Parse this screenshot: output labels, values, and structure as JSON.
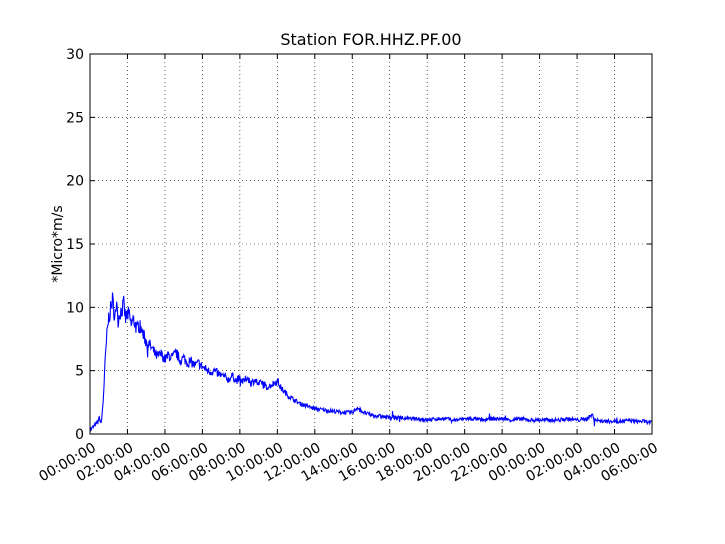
{
  "chart_data": {
    "type": "line",
    "title": "Station FOR.HHZ.PF.00",
    "xlabel": "",
    "ylabel": "*Micro*m/s",
    "ylim": [
      0,
      30
    ],
    "yticks": [
      0,
      5,
      10,
      15,
      20,
      25,
      30
    ],
    "xlim_hours": [
      0,
      30
    ],
    "xticks": [
      "00:00:00",
      "02:00:00",
      "04:00:00",
      "06:00:00",
      "08:00:00",
      "10:00:00",
      "12:00:00",
      "14:00:00",
      "16:00:00",
      "18:00:00",
      "20:00:00",
      "22:00:00",
      "00:00:00",
      "02:00:00",
      "04:00:00",
      "06:00:00"
    ],
    "grid": true,
    "line_color": "#0000ff",
    "series": [
      {
        "x_hours": [
          0,
          0.2,
          0.4,
          0.5,
          0.6,
          0.7,
          0.8,
          0.9,
          1.0,
          1.1,
          1.2,
          1.3,
          1.4,
          1.5,
          1.6,
          1.7,
          1.8,
          1.9,
          2.0,
          2.1,
          2.2,
          2.3,
          2.4,
          2.5,
          2.6,
          2.7,
          2.8,
          2.9,
          3.0,
          3.2,
          3.4,
          3.6,
          3.8,
          4.0,
          4.2,
          4.4,
          4.6,
          4.8,
          5.0,
          5.2,
          5.4,
          5.6,
          5.8,
          6.0,
          6.2,
          6.4,
          6.6,
          6.8,
          7.0,
          7.2,
          7.4,
          7.6,
          7.8,
          8.0,
          8.2,
          8.4,
          8.6,
          8.8,
          9.0,
          9.2,
          9.4,
          9.6,
          9.8,
          10.0,
          10.2,
          10.4,
          10.6,
          10.8,
          11.0,
          11.2,
          11.4,
          11.6,
          11.8,
          12.0,
          12.5,
          13.0,
          13.5,
          14.0,
          14.3,
          14.6,
          15.0,
          15.5,
          16.0,
          16.5,
          17.0,
          17.5,
          18.0,
          18.5,
          19.0,
          19.5,
          20.0,
          20.5,
          21.0,
          21.5,
          22.0,
          22.5,
          23.0,
          23.5,
          24.0,
          24.5,
          25.0,
          25.5,
          26.0,
          26.5,
          26.8,
          27.0,
          27.5,
          28.0,
          28.5,
          28.8,
          29.0,
          29.5,
          30.0
        ],
        "values": [
          0.3,
          0.6,
          0.9,
          1.3,
          0.8,
          2.5,
          5.5,
          7.8,
          9.2,
          9.8,
          10.6,
          9.5,
          10.2,
          9.0,
          9.6,
          9.8,
          10.2,
          9.1,
          9.5,
          9.3,
          8.6,
          9.0,
          8.8,
          8.2,
          8.6,
          8.4,
          8.0,
          7.6,
          7.3,
          7.0,
          6.5,
          6.1,
          6.3,
          5.9,
          6.2,
          6.0,
          6.4,
          5.8,
          6.0,
          5.6,
          5.7,
          5.4,
          5.6,
          5.3,
          5.1,
          4.9,
          5.0,
          4.8,
          4.6,
          4.5,
          4.3,
          4.6,
          4.2,
          4.4,
          4.1,
          4.5,
          4.0,
          4.3,
          3.9,
          4.1,
          3.7,
          3.8,
          4.0,
          4.2,
          3.6,
          3.3,
          3.0,
          2.8,
          2.6,
          2.4,
          2.3,
          2.2,
          2.1,
          2.0,
          1.9,
          1.8,
          1.7,
          1.7,
          2.1,
          1.7,
          1.5,
          1.4,
          1.3,
          1.3,
          1.2,
          1.2,
          1.1,
          1.2,
          1.2,
          1.1,
          1.2,
          1.2,
          1.1,
          1.2,
          1.2,
          1.1,
          1.2,
          1.1,
          1.1,
          1.1,
          1.1,
          1.2,
          1.1,
          1.2,
          1.5,
          1.1,
          1.0,
          1.0,
          1.0,
          1.1,
          1.0,
          1.0,
          0.9
        ]
      }
    ]
  }
}
